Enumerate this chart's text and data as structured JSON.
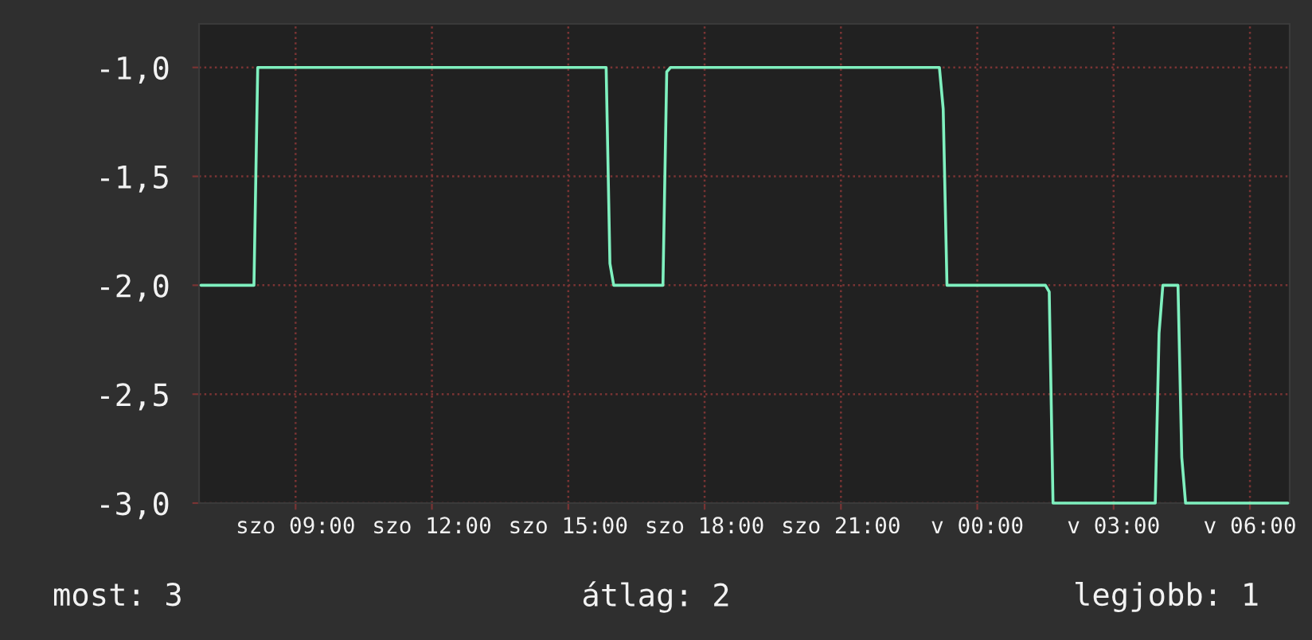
{
  "chart_data": {
    "type": "line",
    "categories": [
      null,
      null,
      null,
      null,
      null,
      null,
      null,
      null,
      null,
      null,
      null,
      null,
      null,
      null,
      null,
      null,
      null,
      null,
      null,
      null,
      null,
      null,
      null,
      null,
      null,
      "szo 09:00",
      null,
      null,
      null,
      null,
      null,
      null,
      null,
      null,
      null,
      null,
      null,
      null,
      null,
      null,
      null,
      null,
      null,
      null,
      null,
      null,
      null,
      null,
      null,
      null,
      null,
      null,
      null,
      null,
      null,
      null,
      null,
      null,
      null,
      null,
      null,
      "szo 12:00",
      null,
      null,
      null,
      null,
      null,
      null,
      null,
      null,
      null,
      null,
      null,
      null,
      null,
      null,
      null,
      null,
      null,
      null,
      null,
      null,
      null,
      null,
      null,
      null,
      null,
      null,
      null,
      null,
      null,
      null,
      null,
      null,
      null,
      null,
      null,
      "szo 15:00",
      null,
      null,
      null,
      null,
      null,
      null,
      null,
      null,
      null,
      null,
      null,
      null,
      null,
      null,
      null,
      null,
      null,
      null,
      null,
      null,
      null,
      null,
      null,
      null,
      null,
      null,
      null,
      null,
      null,
      null,
      null,
      null,
      null,
      null,
      null,
      "szo 18:00",
      null,
      null,
      null,
      null,
      null,
      null,
      null,
      null,
      null,
      null,
      null,
      null,
      null,
      null,
      null,
      null,
      null,
      null,
      null,
      null,
      null,
      null,
      null,
      null,
      null,
      null,
      null,
      null,
      null,
      null,
      null,
      null,
      null,
      null,
      null,
      "szo 21:00",
      null,
      null,
      null,
      null,
      null,
      null,
      null,
      null,
      null,
      null,
      null,
      null,
      null,
      null,
      null,
      null,
      null,
      null,
      null,
      null,
      null,
      null,
      null,
      null,
      null,
      null,
      null,
      null,
      null,
      null,
      null,
      null,
      null,
      null,
      null,
      "v 00:00",
      null,
      null,
      null,
      null,
      null,
      null,
      null,
      null,
      null,
      null,
      null,
      null,
      null,
      null,
      null,
      null,
      null,
      null,
      null,
      null,
      null,
      null,
      null,
      null,
      null,
      null,
      null,
      null,
      null,
      null,
      null,
      null,
      null,
      null,
      null,
      "v 03:00",
      null,
      null,
      null,
      null,
      null,
      null,
      null,
      null,
      null,
      null,
      null,
      null,
      null,
      null,
      null,
      null,
      null,
      null,
      null,
      null,
      null,
      null,
      null,
      null,
      null,
      null,
      null,
      null,
      null,
      null,
      null,
      null,
      null,
      null,
      null,
      "v 06:00",
      null,
      null,
      null,
      null,
      null,
      null,
      null,
      null,
      null,
      null
    ],
    "series": [
      {
        "color": "#7ff0bf",
        "values": [
          -2,
          -2,
          -2,
          -2,
          -2,
          -2,
          -2,
          -2,
          -2,
          -2,
          -2,
          -2,
          -2,
          -2,
          -2,
          -1,
          -1,
          -1,
          -1,
          -1,
          -1,
          -1,
          -1,
          -1,
          -1,
          -1,
          -1,
          -1,
          -1,
          -1,
          -1,
          -1,
          -1,
          -1,
          -1,
          -1,
          -1,
          -1,
          -1,
          -1,
          -1,
          -1,
          -1,
          -1,
          -1,
          -1,
          -1,
          -1,
          -1,
          -1,
          -1,
          -1,
          -1,
          -1,
          -1,
          -1,
          -1,
          -1,
          -1,
          -1,
          -1,
          -1,
          -1,
          -1,
          -1,
          -1,
          -1,
          -1,
          -1,
          -1,
          -1,
          -1,
          -1,
          -1,
          -1,
          -1,
          -1,
          -1,
          -1,
          -1,
          -1,
          -1,
          -1,
          -1,
          -1,
          -1,
          -1,
          -1,
          -1,
          -1,
          -1,
          -1,
          -1,
          -1,
          -1,
          -1,
          -1,
          -1,
          -1,
          -1,
          -1,
          -1,
          -1,
          -1,
          -1,
          -1,
          -1,
          -1,
          -1.9,
          -2,
          -2,
          -2,
          -2,
          -2,
          -2,
          -2,
          -2,
          -2,
          -2,
          -2,
          -2,
          -2,
          -2,
          -1.02,
          -1,
          -1,
          -1,
          -1,
          -1,
          -1,
          -1,
          -1,
          -1,
          -1,
          -1,
          -1,
          -1,
          -1,
          -1,
          -1,
          -1,
          -1,
          -1,
          -1,
          -1,
          -1,
          -1,
          -1,
          -1,
          -1,
          -1,
          -1,
          -1,
          -1,
          -1,
          -1,
          -1,
          -1,
          -1,
          -1,
          -1,
          -1,
          -1,
          -1,
          -1,
          -1,
          -1,
          -1,
          -1,
          -1,
          -1,
          -1,
          -1,
          -1,
          -1,
          -1,
          -1,
          -1,
          -1,
          -1,
          -1,
          -1,
          -1,
          -1,
          -1,
          -1,
          -1,
          -1,
          -1,
          -1,
          -1,
          -1,
          -1,
          -1,
          -1,
          -1,
          -1.19,
          -2,
          -2,
          -2,
          -2,
          -2,
          -2,
          -2,
          -2,
          -2,
          -2,
          -2,
          -2,
          -2,
          -2,
          -2,
          -2,
          -2,
          -2,
          -2,
          -2,
          -2,
          -2,
          -2,
          -2,
          -2,
          -2,
          -2,
          -2.03,
          -3,
          -3,
          -3,
          -3,
          -3,
          -3,
          -3,
          -3,
          -3,
          -3,
          -3,
          -3,
          -3,
          -3,
          -3,
          -3,
          -3,
          -3,
          -3,
          -3,
          -3,
          -3,
          -3,
          -3,
          -3,
          -3,
          -3,
          -3,
          -2.22,
          -2,
          -2,
          -2,
          -2,
          -2,
          -2.79,
          -3,
          -3,
          -3,
          -3,
          -3,
          -3,
          -3,
          -3,
          -3,
          -3,
          -3,
          -3,
          -3,
          -3,
          -3,
          -3,
          -3,
          -3,
          -3,
          -3,
          -3,
          -3,
          -3,
          -3,
          -3,
          -3,
          -3,
          -3
        ]
      }
    ],
    "ylim": [
      -3.0,
      -0.8
    ],
    "yticks": [
      {
        "value": -1.0,
        "label": "-1,0"
      },
      {
        "value": -1.5,
        "label": "-1,5"
      },
      {
        "value": -2.0,
        "label": "-2,0"
      },
      {
        "value": -2.5,
        "label": "-2,5"
      },
      {
        "value": -3.0,
        "label": "-3,0"
      }
    ],
    "grid": true,
    "line_style": "solid",
    "annotations": [
      "most: 3",
      "átlag: 2",
      "legjobb: 1"
    ]
  }
}
